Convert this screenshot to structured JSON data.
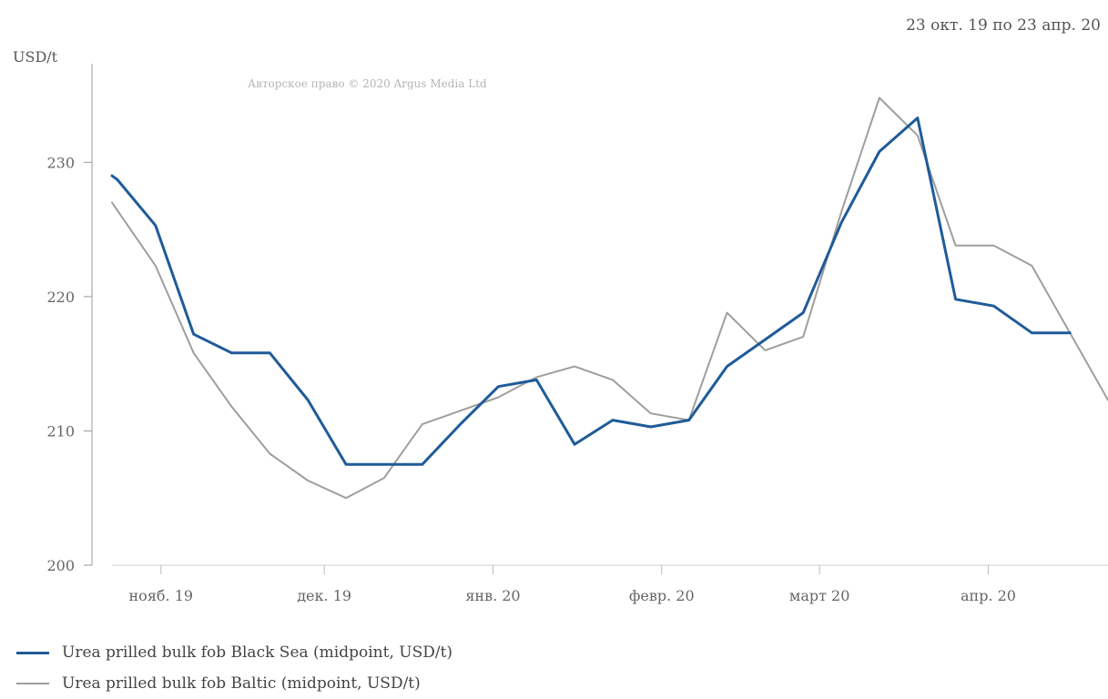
{
  "header": {
    "date_range": "23 окт. 19 по 23 апр. 20"
  },
  "watermark": "Авторское право © 2020 Argus Media Ltd",
  "chart_data": {
    "type": "line",
    "ylabel": "USD/t",
    "ylim": [
      200,
      237
    ],
    "yticks": [
      200,
      210,
      220,
      230
    ],
    "xlim": [
      "2019-10-23",
      "2020-04-23"
    ],
    "xticks": [
      {
        "date": "2019-11-01",
        "label": "нояб. 19"
      },
      {
        "date": "2019-12-01",
        "label": "дек. 19"
      },
      {
        "date": "2020-01-01",
        "label": "янв. 20"
      },
      {
        "date": "2020-02-01",
        "label": "февр. 20"
      },
      {
        "date": "2020-03-01",
        "label": "март 20"
      },
      {
        "date": "2020-04-01",
        "label": "апр. 20"
      }
    ],
    "grid": false,
    "legend_position": "bottom-left",
    "series": [
      {
        "name": "Urea prilled bulk fob Black Sea (midpoint, USD/t)",
        "color": "#1f5b98",
        "points": [
          [
            "2019-10-23",
            229
          ],
          [
            "2019-10-24",
            228.7
          ],
          [
            "2019-10-31",
            225.3
          ],
          [
            "2019-11-07",
            217.2
          ],
          [
            "2019-11-14",
            215.8
          ],
          [
            "2019-11-21",
            215.8
          ],
          [
            "2019-11-28",
            212.3
          ],
          [
            "2019-12-05",
            207.5
          ],
          [
            "2019-12-12",
            207.5
          ],
          [
            "2019-12-19",
            207.5
          ],
          [
            "2019-12-26",
            210.5
          ],
          [
            "2020-01-02",
            213.3
          ],
          [
            "2020-01-09",
            213.8
          ],
          [
            "2020-01-16",
            209
          ],
          [
            "2020-01-23",
            210.8
          ],
          [
            "2020-01-30",
            210.3
          ],
          [
            "2020-02-06",
            210.8
          ],
          [
            "2020-02-13",
            214.8
          ],
          [
            "2020-02-20",
            216.8
          ],
          [
            "2020-02-27",
            218.8
          ],
          [
            "2020-03-05",
            225.5
          ],
          [
            "2020-03-12",
            230.8
          ],
          [
            "2020-03-19",
            233.3
          ],
          [
            "2020-03-26",
            219.8
          ],
          [
            "2020-04-02",
            219.3
          ],
          [
            "2020-04-09",
            217.3
          ],
          [
            "2020-04-16",
            217.3
          ]
        ]
      },
      {
        "name": "Urea prilled bulk fob Baltic (midpoint, USD/t)",
        "color": "#9e9e9e",
        "points": [
          [
            "2019-10-23",
            227
          ],
          [
            "2019-10-31",
            222.3
          ],
          [
            "2019-11-07",
            215.8
          ],
          [
            "2019-11-14",
            211.8
          ],
          [
            "2019-11-21",
            208.3
          ],
          [
            "2019-11-28",
            206.3
          ],
          [
            "2019-12-05",
            205
          ],
          [
            "2019-12-12",
            206.5
          ],
          [
            "2019-12-19",
            210.5
          ],
          [
            "2019-12-26",
            211.5
          ],
          [
            "2020-01-02",
            212.5
          ],
          [
            "2020-01-09",
            214
          ],
          [
            "2020-01-16",
            214.8
          ],
          [
            "2020-01-23",
            213.8
          ],
          [
            "2020-01-30",
            211.3
          ],
          [
            "2020-02-06",
            210.8
          ],
          [
            "2020-02-13",
            218.8
          ],
          [
            "2020-02-20",
            216
          ],
          [
            "2020-02-27",
            217
          ],
          [
            "2020-03-05",
            226.3
          ],
          [
            "2020-03-12",
            234.8
          ],
          [
            "2020-03-19",
            232
          ],
          [
            "2020-03-26",
            223.8
          ],
          [
            "2020-04-02",
            223.8
          ],
          [
            "2020-04-09",
            222.3
          ],
          [
            "2020-04-16",
            217.3
          ],
          [
            "2020-04-23",
            212.3
          ]
        ]
      }
    ]
  }
}
